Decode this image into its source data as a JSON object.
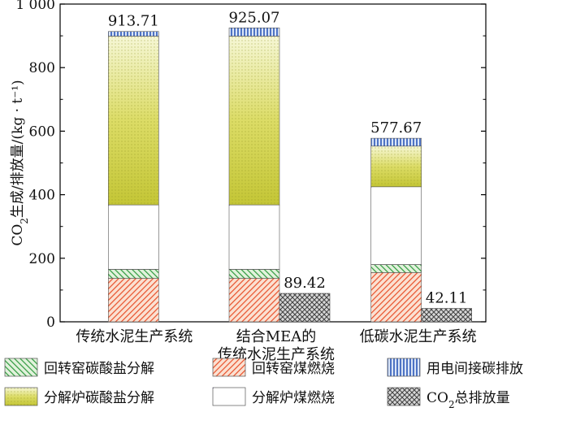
{
  "chart_data": {
    "type": "bar",
    "stacked": true,
    "ylabel": "CO₂生成/排放量/(kg · t⁻¹)",
    "ylim": [
      0,
      1000
    ],
    "yticks": [
      0,
      200,
      400,
      600,
      800,
      1000
    ],
    "ytick_labels": [
      "0",
      "200",
      "400",
      "600",
      "800",
      "1 000"
    ],
    "categories": [
      {
        "lines": [
          "传统水泥生产系统"
        ]
      },
      {
        "lines": [
          "结合MEA的",
          "传统水泥生产系统"
        ]
      },
      {
        "lines": [
          "低碳水泥生产系统"
        ]
      }
    ],
    "series": [
      {
        "name": "回转窑煤燃烧",
        "key": "kiln_coal",
        "pattern": "hatch-red",
        "values": [
          137,
          137,
          155
        ]
      },
      {
        "name": "回转窑碳酸盐分解",
        "key": "kiln_carbonate",
        "pattern": "hatch-green",
        "values": [
          28,
          28,
          25
        ]
      },
      {
        "name": "分解炉煤燃烧",
        "key": "calciner_coal",
        "pattern": "grad-purple",
        "values": [
          203,
          203,
          245
        ]
      },
      {
        "name": "分解炉碳酸盐分解",
        "key": "calciner_carbonate",
        "pattern": "grad-yellow",
        "values": [
          531,
          531,
          128
        ]
      },
      {
        "name": "用电间接碳排放",
        "key": "electricity",
        "pattern": "vlines-blue",
        "values": [
          14.71,
          26.07,
          24.67
        ]
      }
    ],
    "totals": [
      "913.71",
      "925.07",
      "577.67"
    ],
    "emission_series": {
      "name": "CO₂总排放量",
      "pattern": "cross",
      "values": [
        null,
        89.42,
        42.11
      ],
      "labels": [
        "",
        "89.42",
        "42.11"
      ]
    },
    "legend": {
      "position": "bottom",
      "rows": [
        [
          {
            "label": "回转窑碳酸盐分解",
            "pattern": "hatch-green"
          },
          {
            "label": "回转窑煤燃烧",
            "pattern": "hatch-red"
          },
          {
            "label": "用电间接碳排放",
            "pattern": "vlines-blue"
          }
        ],
        [
          {
            "label": "分解炉碳酸盐分解",
            "pattern": "grad-yellow"
          },
          {
            "label": "分解炉煤燃烧",
            "pattern": "grad-purple"
          },
          {
            "label": "CO₂总排放量",
            "pattern": "cross"
          }
        ]
      ]
    }
  }
}
